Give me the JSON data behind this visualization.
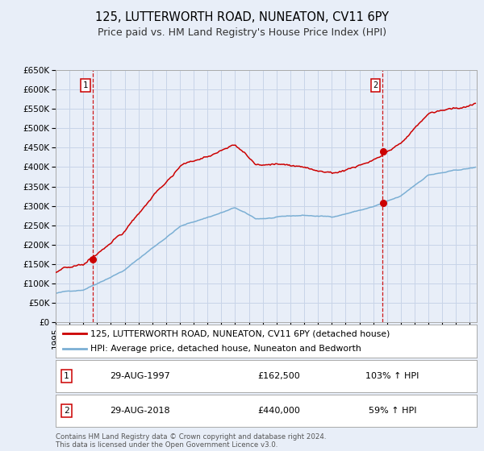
{
  "title": "125, LUTTERWORTH ROAD, NUNEATON, CV11 6PY",
  "subtitle": "Price paid vs. HM Land Registry's House Price Index (HPI)",
  "hpi_label": "HPI: Average price, detached house, Nuneaton and Bedworth",
  "property_label": "125, LUTTERWORTH ROAD, NUNEATON, CV11 6PY (detached house)",
  "transaction1_date": "29-AUG-1997",
  "transaction1_price": 162500,
  "transaction1_pct": "103% ↑ HPI",
  "transaction2_date": "29-AUG-2018",
  "transaction2_price": 440000,
  "transaction2_pct": "59% ↑ HPI",
  "hpi_color": "#7bafd4",
  "property_color": "#cc0000",
  "marker_color": "#cc0000",
  "vline_color": "#cc0000",
  "grid_color": "#c8d4e8",
  "background_color": "#e8eef8",
  "legend_box_color": "#ffffff",
  "transaction_box_color": "#ffffff",
  "ylim": [
    0,
    650000
  ],
  "xlim_start": 1995.0,
  "xlim_end": 2025.5,
  "footer_text": "Contains HM Land Registry data © Crown copyright and database right 2024.\nThis data is licensed under the Open Government Licence v3.0.",
  "title_fontsize": 10.5,
  "subtitle_fontsize": 9,
  "tick_fontsize": 7.5,
  "t1_x": 1997.66,
  "t2_x": 2018.66
}
